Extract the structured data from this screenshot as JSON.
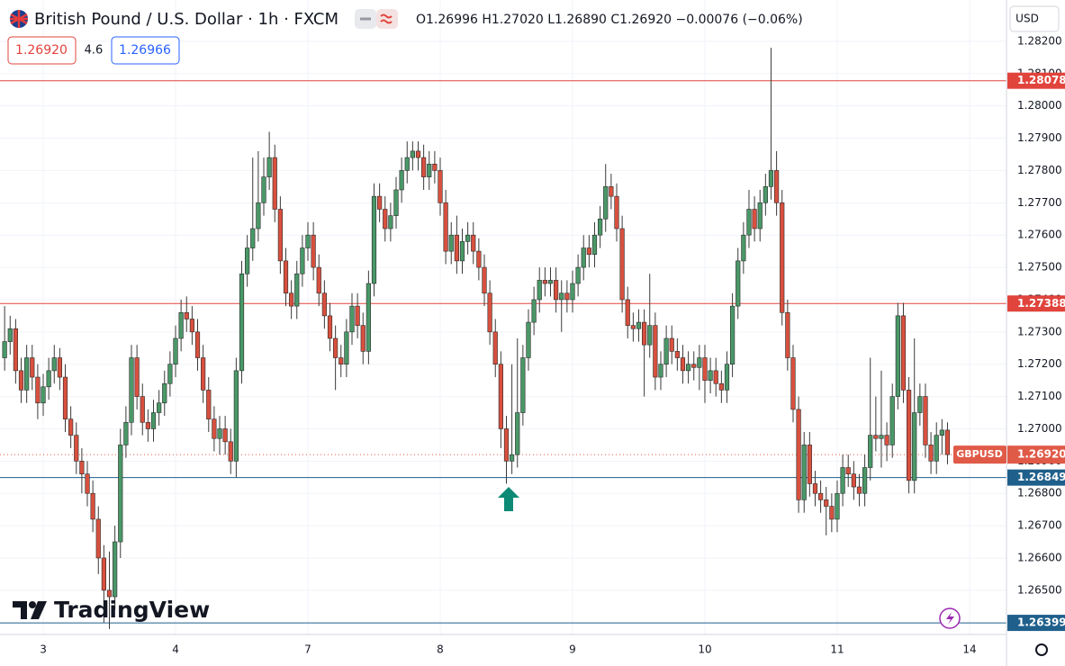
{
  "chart_data": {
    "type": "candlestick",
    "title": "British Pound / U.S. Dollar · 1h · FXCM",
    "header_quote": "O1.26996 H1.27020 L1.26890 C1.26920 −0.00076 (−0.06%)",
    "sell_price": "1.26920",
    "spread": "4.6",
    "buy_price": "1.26966",
    "currency": "USD",
    "logo": "TradingView",
    "up_color": "#4a9868",
    "down_color": "#d8503e",
    "grid": true,
    "xlim": [
      -7.84,
      174.7
    ],
    "ylim": [
      1.26363,
      1.28328
    ],
    "xticks": [
      {
        "value": 0,
        "label": "3"
      },
      {
        "value": 24,
        "label": "4"
      },
      {
        "value": 48,
        "label": "7"
      },
      {
        "value": 72,
        "label": "8"
      },
      {
        "value": 96,
        "label": "9"
      },
      {
        "value": 120,
        "label": "10"
      },
      {
        "value": 144,
        "label": "11"
      },
      {
        "value": 168,
        "label": "14"
      }
    ],
    "yticks": [
      {
        "value": 1.265,
        "label": "1.26500"
      },
      {
        "value": 1.266,
        "label": "1.26600"
      },
      {
        "value": 1.267,
        "label": "1.26700"
      },
      {
        "value": 1.268,
        "label": "1.26800"
      },
      {
        "value": 1.269,
        "label": "1.26900"
      },
      {
        "value": 1.27,
        "label": "1.27000"
      },
      {
        "value": 1.271,
        "label": "1.27100"
      },
      {
        "value": 1.272,
        "label": "1.27200"
      },
      {
        "value": 1.273,
        "label": "1.27300"
      },
      {
        "value": 1.274,
        "label": "1.27400"
      },
      {
        "value": 1.275,
        "label": "1.27500"
      },
      {
        "value": 1.276,
        "label": "1.27600"
      },
      {
        "value": 1.277,
        "label": "1.27700"
      },
      {
        "value": 1.278,
        "label": "1.27800"
      },
      {
        "value": 1.279,
        "label": "1.27900"
      },
      {
        "value": 1.28,
        "label": "1.28000"
      },
      {
        "value": 1.281,
        "label": "1.28100"
      },
      {
        "value": 1.282,
        "label": "1.28200"
      }
    ],
    "levels": [
      {
        "value": 1.28078,
        "color": "#e0443c"
      },
      {
        "value": 1.27388,
        "color": "#e0443c"
      },
      {
        "value": 1.26849,
        "color": "#1f5f8b"
      },
      {
        "value": 1.26399,
        "color": "#1f5f8b"
      }
    ],
    "last_price": {
      "value": 1.2692,
      "label": "1.26920",
      "symbol": "GBPUSD",
      "color": "#e05a48"
    },
    "x": [
      -7,
      -6,
      -5,
      -4,
      -3,
      -2,
      -1,
      0,
      1,
      2,
      3,
      4,
      5,
      6,
      7,
      8,
      9,
      10,
      11,
      12,
      13,
      14,
      15,
      16,
      17,
      18,
      19,
      20,
      21,
      22,
      23,
      24,
      25,
      26,
      27,
      28,
      29,
      30,
      31,
      32,
      33,
      34,
      35,
      36,
      37,
      38,
      39,
      40,
      41,
      42,
      43,
      44,
      45,
      46,
      47,
      48,
      49,
      50,
      51,
      52,
      53,
      54,
      55,
      56,
      57,
      58,
      59,
      60,
      61,
      62,
      63,
      64,
      65,
      66,
      67,
      68,
      69,
      70,
      71,
      72,
      73,
      74,
      75,
      76,
      77,
      78,
      79,
      80,
      81,
      82,
      83,
      84,
      85,
      86,
      87,
      88,
      89,
      90,
      91,
      92,
      93,
      94,
      95,
      96,
      97,
      98,
      99,
      100,
      101,
      102,
      103,
      104,
      105,
      106,
      107,
      108,
      109,
      110,
      111,
      112,
      113,
      114,
      115,
      116,
      117,
      118,
      119,
      120,
      121,
      122,
      123,
      124,
      125,
      126,
      127,
      128,
      129,
      130,
      131,
      132,
      133,
      134,
      135,
      136,
      137,
      138,
      139,
      140,
      141,
      142,
      143,
      144,
      145,
      146,
      147,
      148,
      149,
      150,
      151,
      152,
      153,
      154,
      155,
      156,
      157,
      158,
      159,
      160,
      161,
      162,
      163,
      164
    ],
    "open": [
      1.2722,
      1.2727,
      1.2731,
      1.2718,
      1.2712,
      1.2722,
      1.2716,
      1.2708,
      1.2713,
      1.2718,
      1.2722,
      1.2716,
      1.2703,
      1.2698,
      1.269,
      1.2686,
      1.268,
      1.2672,
      1.266,
      1.265,
      1.2648,
      1.2665,
      1.2695,
      1.2702,
      1.2722,
      1.271,
      1.2702,
      1.27,
      1.2705,
      1.2708,
      1.2714,
      1.272,
      1.2728,
      1.2736,
      1.2734,
      1.273,
      1.2722,
      1.2712,
      1.2703,
      1.2697,
      1.27,
      1.2696,
      1.269,
      1.2718,
      1.2748,
      1.2756,
      1.2762,
      1.277,
      1.2778,
      1.2784,
      1.2768,
      1.2752,
      1.2742,
      1.2738,
      1.2748,
      1.2756,
      1.276,
      1.275,
      1.2742,
      1.2735,
      1.2728,
      1.2722,
      1.272,
      1.273,
      1.2738,
      1.2732,
      1.2724,
      1.2745,
      1.2772,
      1.2768,
      1.2762,
      1.2766,
      1.2774,
      1.278,
      1.2784,
      1.2786,
      1.2784,
      1.2778,
      1.2782,
      1.278,
      1.277,
      1.2755,
      1.276,
      1.2752,
      1.2758,
      1.276,
      1.2755,
      1.275,
      1.2742,
      1.273,
      1.272,
      1.27,
      1.269,
      1.2692,
      1.2705,
      1.2722,
      1.2733,
      1.274,
      1.2746,
      1.2745,
      1.2746,
      1.274,
      1.2742,
      1.274,
      1.2745,
      1.275,
      1.2756,
      1.2754,
      1.276,
      1.2765,
      1.2775,
      1.2772,
      1.2762,
      1.274,
      1.2732,
      1.2731,
      1.2733,
      1.2726,
      1.2732,
      1.2716,
      1.272,
      1.2728,
      1.2724,
      1.2722,
      1.2718,
      1.272,
      1.2719,
      1.2722,
      1.2715,
      1.2718,
      1.2714,
      1.2712,
      1.272,
      1.2738,
      1.2752,
      1.276,
      1.2768,
      1.2762,
      1.277,
      1.2775,
      1.278,
      1.277,
      1.2736,
      1.2722,
      1.2706,
      1.2678,
      1.2695,
      1.2683,
      1.268,
      1.2678,
      1.2676,
      1.2672,
      1.268,
      1.2688,
      1.2686,
      1.2682,
      1.268,
      1.2688,
      1.2698,
      1.2697,
      1.2698,
      1.2695,
      1.271,
      1.2735,
      1.2712,
      1.2684,
      1.2705,
      1.271,
      1.2695,
      1.269,
      1.2698,
      1.26996
    ],
    "high": [
      1.2738,
      1.2735,
      1.2734,
      1.2722,
      1.2726,
      1.2726,
      1.272,
      1.2717,
      1.2722,
      1.2726,
      1.2725,
      1.272,
      1.2707,
      1.2702,
      1.2694,
      1.269,
      1.2684,
      1.2676,
      1.2664,
      1.2662,
      1.267,
      1.27,
      1.2707,
      1.2726,
      1.2726,
      1.2714,
      1.2706,
      1.2709,
      1.2712,
      1.2718,
      1.2724,
      1.2732,
      1.274,
      1.2741,
      1.2738,
      1.2734,
      1.2726,
      1.2716,
      1.2707,
      1.2704,
      1.2704,
      1.27,
      1.2722,
      1.2752,
      1.276,
      1.2784,
      1.2786,
      1.2784,
      1.2792,
      1.2788,
      1.2772,
      1.2756,
      1.2746,
      1.2752,
      1.276,
      1.2764,
      1.2764,
      1.2754,
      1.2746,
      1.2739,
      1.2732,
      1.2726,
      1.2734,
      1.2742,
      1.2742,
      1.2736,
      1.2749,
      1.2776,
      1.2776,
      1.2772,
      1.277,
      1.2778,
      1.2784,
      1.2789,
      1.2789,
      1.2789,
      1.2788,
      1.2786,
      1.2786,
      1.2784,
      1.2774,
      1.2764,
      1.2766,
      1.2762,
      1.2764,
      1.2764,
      1.2759,
      1.2754,
      1.2746,
      1.2734,
      1.2724,
      1.2704,
      1.272,
      1.2728,
      1.2726,
      1.2737,
      1.2744,
      1.275,
      1.275,
      1.275,
      1.275,
      1.2746,
      1.2746,
      1.2749,
      1.2754,
      1.276,
      1.276,
      1.2764,
      1.2769,
      1.2782,
      1.2779,
      1.2776,
      1.2766,
      1.2744,
      1.2736,
      1.2737,
      1.2737,
      1.2748,
      1.2736,
      1.2724,
      1.2732,
      1.2732,
      1.2728,
      1.2726,
      1.2724,
      1.2724,
      1.2726,
      1.2726,
      1.2722,
      1.2722,
      1.2718,
      1.2724,
      1.2742,
      1.2756,
      1.2764,
      1.2774,
      1.2772,
      1.2774,
      1.2779,
      1.2818,
      1.2786,
      1.2774,
      1.274,
      1.2726,
      1.271,
      1.2699,
      1.2699,
      1.2687,
      1.2684,
      1.2682,
      1.268,
      1.2684,
      1.2692,
      1.2692,
      1.269,
      1.2686,
      1.2692,
      1.2722,
      1.271,
      1.2718,
      1.2702,
      1.2714,
      1.2739,
      1.2739,
      1.2716,
      1.2728,
      1.2714,
      1.2714,
      1.2699,
      1.2702,
      1.2703,
      1.2702
    ],
    "low": [
      1.2718,
      1.2723,
      1.2714,
      1.2708,
      1.2708,
      1.2712,
      1.2703,
      1.2704,
      1.2709,
      1.2714,
      1.2712,
      1.2699,
      1.2694,
      1.2686,
      1.268,
      1.2676,
      1.2668,
      1.2655,
      1.264,
      1.2638,
      1.2644,
      1.266,
      1.2691,
      1.2698,
      1.2706,
      1.2698,
      1.2696,
      1.2696,
      1.2701,
      1.2704,
      1.271,
      1.2716,
      1.2724,
      1.273,
      1.2726,
      1.2718,
      1.2708,
      1.2699,
      1.2693,
      1.2692,
      1.2692,
      1.2686,
      1.2685,
      1.2714,
      1.2744,
      1.2752,
      1.2758,
      1.2766,
      1.2774,
      1.2764,
      1.2748,
      1.2738,
      1.2734,
      1.2734,
      1.2744,
      1.2752,
      1.2746,
      1.2738,
      1.2731,
      1.2724,
      1.2712,
      1.2716,
      1.2716,
      1.2726,
      1.2728,
      1.272,
      1.272,
      1.2741,
      1.2764,
      1.2758,
      1.2758,
      1.2762,
      1.277,
      1.2776,
      1.278,
      1.278,
      1.2774,
      1.2774,
      1.2776,
      1.2766,
      1.2751,
      1.2751,
      1.2748,
      1.2748,
      1.2754,
      1.2751,
      1.2746,
      1.2738,
      1.2726,
      1.2716,
      1.2694,
      1.2683,
      1.2686,
      1.2688,
      1.2701,
      1.2718,
      1.2729,
      1.2736,
      1.2741,
      1.2741,
      1.2736,
      1.273,
      1.2736,
      1.2736,
      1.2741,
      1.2746,
      1.275,
      1.275,
      1.2756,
      1.2761,
      1.2768,
      1.2758,
      1.2736,
      1.2728,
      1.2727,
      1.2727,
      1.271,
      1.2722,
      1.2712,
      1.2712,
      1.2716,
      1.272,
      1.2718,
      1.2714,
      1.2714,
      1.2715,
      1.2712,
      1.2708,
      1.2711,
      1.271,
      1.2708,
      1.2708,
      1.2716,
      1.2734,
      1.2748,
      1.2756,
      1.2758,
      1.2758,
      1.2766,
      1.2771,
      1.2766,
      1.2732,
      1.2718,
      1.2702,
      1.2674,
      1.2674,
      1.2679,
      1.2676,
      1.2674,
      1.2667,
      1.2668,
      1.2668,
      1.2676,
      1.2682,
      1.2678,
      1.2676,
      1.2676,
      1.2684,
      1.2693,
      1.2688,
      1.269,
      1.2691,
      1.2706,
      1.2708,
      1.268,
      1.268,
      1.2701,
      1.2691,
      1.2686,
      1.2686,
      1.2692,
      1.2689
    ],
    "close": [
      1.2727,
      1.2731,
      1.2718,
      1.2712,
      1.2722,
      1.2716,
      1.2708,
      1.2713,
      1.2718,
      1.2722,
      1.2716,
      1.2703,
      1.2698,
      1.269,
      1.2686,
      1.268,
      1.2672,
      1.266,
      1.265,
      1.2648,
      1.2665,
      1.2695,
      1.2702,
      1.2722,
      1.271,
      1.2702,
      1.27,
      1.2705,
      1.2708,
      1.2714,
      1.272,
      1.2728,
      1.2736,
      1.2734,
      1.273,
      1.2722,
      1.2712,
      1.2703,
      1.2697,
      1.27,
      1.2696,
      1.269,
      1.2718,
      1.2748,
      1.2756,
      1.2762,
      1.277,
      1.2778,
      1.2784,
      1.2768,
      1.2752,
      1.2742,
      1.2738,
      1.2748,
      1.2756,
      1.276,
      1.275,
      1.2742,
      1.2735,
      1.2728,
      1.2722,
      1.272,
      1.273,
      1.2738,
      1.2732,
      1.2724,
      1.2745,
      1.2772,
      1.2768,
      1.2762,
      1.2766,
      1.2774,
      1.278,
      1.2784,
      1.2786,
      1.2784,
      1.2778,
      1.2782,
      1.278,
      1.277,
      1.2755,
      1.276,
      1.2752,
      1.2758,
      1.276,
      1.2755,
      1.275,
      1.2742,
      1.273,
      1.272,
      1.27,
      1.269,
      1.2692,
      1.2705,
      1.2722,
      1.2733,
      1.274,
      1.2746,
      1.2745,
      1.2746,
      1.274,
      1.2742,
      1.274,
      1.2745,
      1.275,
      1.2756,
      1.2754,
      1.276,
      1.2765,
      1.2775,
      1.2772,
      1.2762,
      1.274,
      1.2732,
      1.2731,
      1.2733,
      1.2726,
      1.2732,
      1.2716,
      1.272,
      1.2728,
      1.2724,
      1.2722,
      1.2718,
      1.272,
      1.2719,
      1.2722,
      1.2715,
      1.2718,
      1.2714,
      1.2712,
      1.272,
      1.2738,
      1.2752,
      1.276,
      1.2768,
      1.2762,
      1.277,
      1.2775,
      1.278,
      1.277,
      1.2736,
      1.2722,
      1.2706,
      1.2678,
      1.2695,
      1.2683,
      1.268,
      1.2678,
      1.2676,
      1.2672,
      1.268,
      1.2688,
      1.2686,
      1.2682,
      1.268,
      1.2688,
      1.2698,
      1.2697,
      1.2698,
      1.2695,
      1.271,
      1.2735,
      1.2712,
      1.2684,
      1.2705,
      1.271,
      1.2695,
      1.269,
      1.2698,
      1.26996,
      1.2692
    ]
  }
}
